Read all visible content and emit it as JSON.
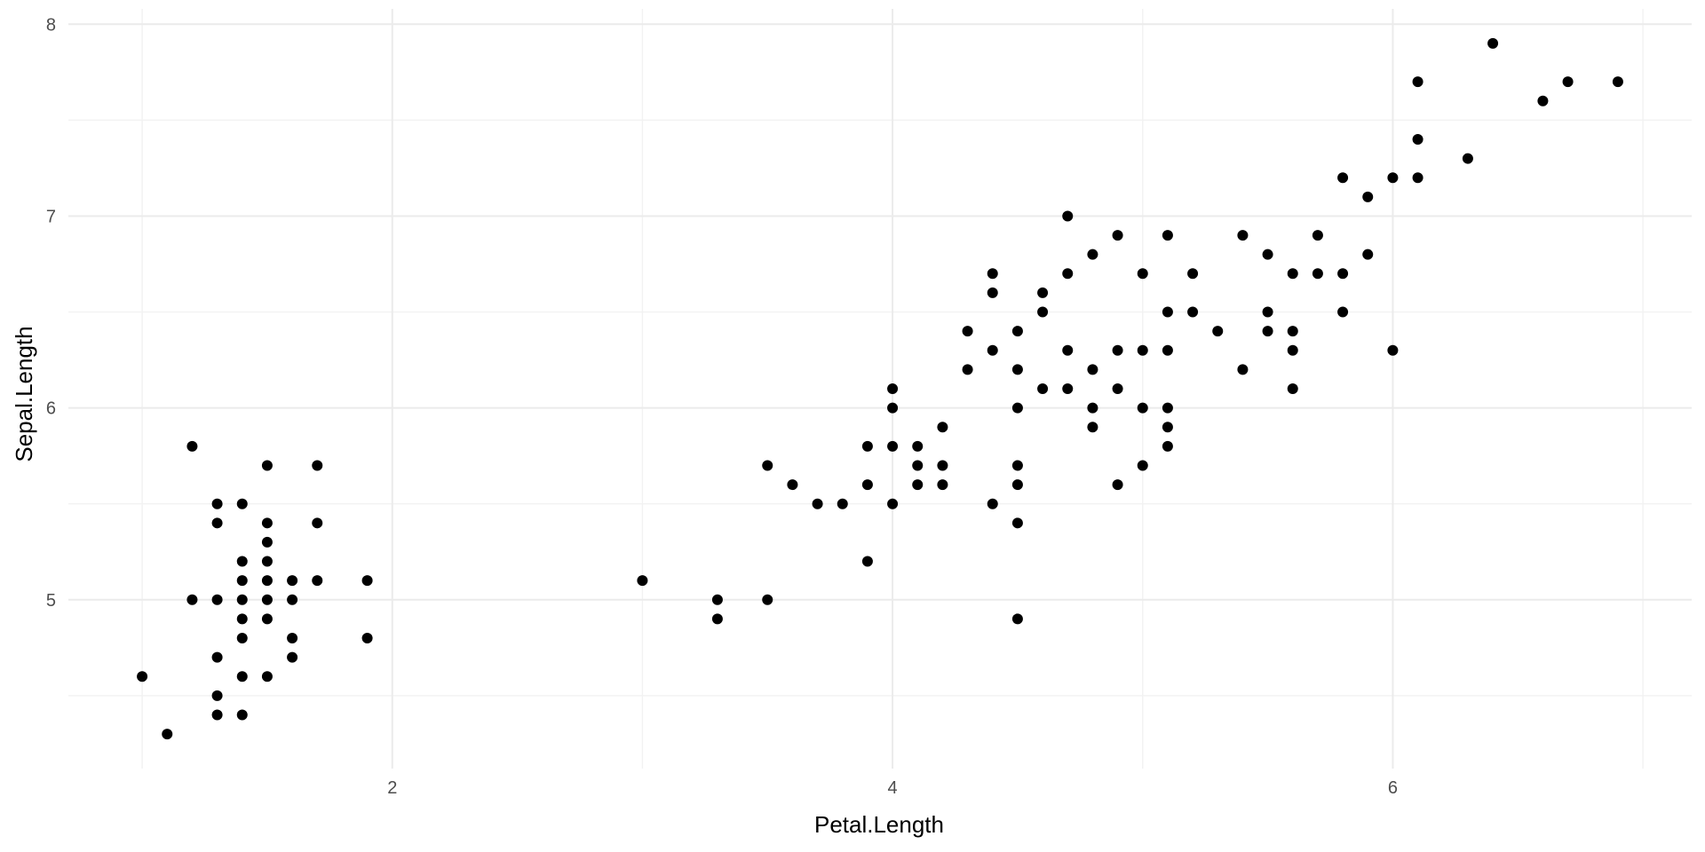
{
  "chart_data": {
    "type": "scatter",
    "title": "",
    "xlabel": "Petal.Length",
    "ylabel": "Sepal.Length",
    "xlim": [
      0.705,
      7.195
    ],
    "ylim": [
      4.12,
      8.08
    ],
    "x_ticks": [
      2,
      4,
      6
    ],
    "y_ticks": [
      5,
      6,
      7,
      8
    ],
    "x_minor_ticks": [
      1,
      3,
      5,
      7
    ],
    "y_minor_ticks": [
      4.5,
      5.5,
      6.5,
      7.5
    ],
    "grid": true,
    "point_color": "#000000",
    "series": [
      {
        "points": [
          [
            1.0,
            4.6
          ],
          [
            1.1,
            4.3
          ],
          [
            1.2,
            5.8
          ],
          [
            1.2,
            5.0
          ],
          [
            1.3,
            5.5
          ],
          [
            1.3,
            5.4
          ],
          [
            1.3,
            5.0
          ],
          [
            1.3,
            4.7
          ],
          [
            1.3,
            4.5
          ],
          [
            1.3,
            4.4
          ],
          [
            1.4,
            5.5
          ],
          [
            1.4,
            5.2
          ],
          [
            1.4,
            5.1
          ],
          [
            1.4,
            5.0
          ],
          [
            1.4,
            4.9
          ],
          [
            1.4,
            4.8
          ],
          [
            1.4,
            4.6
          ],
          [
            1.4,
            4.4
          ],
          [
            1.5,
            5.7
          ],
          [
            1.5,
            5.4
          ],
          [
            1.5,
            5.3
          ],
          [
            1.5,
            5.2
          ],
          [
            1.5,
            5.1
          ],
          [
            1.5,
            5.0
          ],
          [
            1.5,
            4.9
          ],
          [
            1.5,
            4.6
          ],
          [
            1.6,
            5.1
          ],
          [
            1.6,
            5.0
          ],
          [
            1.6,
            4.8
          ],
          [
            1.6,
            4.7
          ],
          [
            1.7,
            5.7
          ],
          [
            1.7,
            5.4
          ],
          [
            1.7,
            5.1
          ],
          [
            1.9,
            5.1
          ],
          [
            1.9,
            4.8
          ],
          [
            3.0,
            5.1
          ],
          [
            3.3,
            5.0
          ],
          [
            3.3,
            4.9
          ],
          [
            3.5,
            5.7
          ],
          [
            3.5,
            5.0
          ],
          [
            3.6,
            5.6
          ],
          [
            3.7,
            5.5
          ],
          [
            3.8,
            5.5
          ],
          [
            3.9,
            5.8
          ],
          [
            3.9,
            5.6
          ],
          [
            3.9,
            5.2
          ],
          [
            4.0,
            6.1
          ],
          [
            4.0,
            6.0
          ],
          [
            4.0,
            5.8
          ],
          [
            4.0,
            5.5
          ],
          [
            4.1,
            5.8
          ],
          [
            4.1,
            5.7
          ],
          [
            4.1,
            5.6
          ],
          [
            4.2,
            5.9
          ],
          [
            4.2,
            5.7
          ],
          [
            4.2,
            5.6
          ],
          [
            4.3,
            6.4
          ],
          [
            4.3,
            6.2
          ],
          [
            4.4,
            6.7
          ],
          [
            4.4,
            6.6
          ],
          [
            4.4,
            6.3
          ],
          [
            4.4,
            5.5
          ],
          [
            4.5,
            6.4
          ],
          [
            4.5,
            6.2
          ],
          [
            4.5,
            6.0
          ],
          [
            4.5,
            5.7
          ],
          [
            4.5,
            5.6
          ],
          [
            4.5,
            5.4
          ],
          [
            4.5,
            4.9
          ],
          [
            4.6,
            6.6
          ],
          [
            4.6,
            6.5
          ],
          [
            4.6,
            6.1
          ],
          [
            4.7,
            7.0
          ],
          [
            4.7,
            6.7
          ],
          [
            4.7,
            6.3
          ],
          [
            4.7,
            6.1
          ],
          [
            4.8,
            6.8
          ],
          [
            4.8,
            6.2
          ],
          [
            4.8,
            6.0
          ],
          [
            4.8,
            5.9
          ],
          [
            4.9,
            6.9
          ],
          [
            4.9,
            6.3
          ],
          [
            4.9,
            6.1
          ],
          [
            4.9,
            5.6
          ],
          [
            5.0,
            6.7
          ],
          [
            5.0,
            6.3
          ],
          [
            5.0,
            6.0
          ],
          [
            5.0,
            5.7
          ],
          [
            5.1,
            6.9
          ],
          [
            5.1,
            6.5
          ],
          [
            5.1,
            6.3
          ],
          [
            5.1,
            6.0
          ],
          [
            5.1,
            5.9
          ],
          [
            5.1,
            5.8
          ],
          [
            5.2,
            6.7
          ],
          [
            5.2,
            6.5
          ],
          [
            5.3,
            6.4
          ],
          [
            5.4,
            6.9
          ],
          [
            5.4,
            6.2
          ],
          [
            5.5,
            6.8
          ],
          [
            5.5,
            6.5
          ],
          [
            5.5,
            6.4
          ],
          [
            5.6,
            6.7
          ],
          [
            5.6,
            6.4
          ],
          [
            5.6,
            6.3
          ],
          [
            5.6,
            6.1
          ],
          [
            5.7,
            6.9
          ],
          [
            5.7,
            6.7
          ],
          [
            5.8,
            7.2
          ],
          [
            5.8,
            6.7
          ],
          [
            5.8,
            6.5
          ],
          [
            5.9,
            7.1
          ],
          [
            5.9,
            6.8
          ],
          [
            6.0,
            7.2
          ],
          [
            6.0,
            6.3
          ],
          [
            6.1,
            7.7
          ],
          [
            6.1,
            7.4
          ],
          [
            6.1,
            7.2
          ],
          [
            6.3,
            7.3
          ],
          [
            6.4,
            7.9
          ],
          [
            6.6,
            7.6
          ],
          [
            6.7,
            7.7
          ],
          [
            6.9,
            7.7
          ]
        ]
      }
    ]
  }
}
